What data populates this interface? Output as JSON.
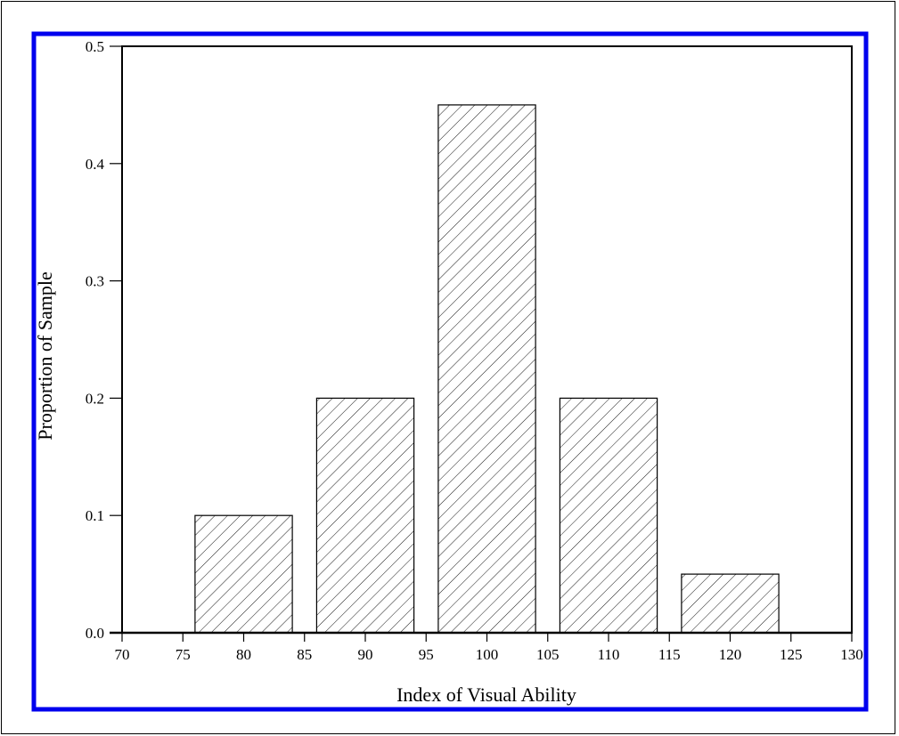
{
  "chart_data": {
    "type": "bar",
    "xlabel": "Index of Visual Ability",
    "ylabel": "Proportion of Sample",
    "xlim": [
      70,
      130
    ],
    "ylim": [
      0.0,
      0.5
    ],
    "x_ticks": [
      "70",
      "75",
      "80",
      "85",
      "90",
      "95",
      "100",
      "105",
      "110",
      "115",
      "120",
      "125",
      "130"
    ],
    "y_ticks": [
      "0.0",
      "0.1",
      "0.2",
      "0.3",
      "0.4",
      "0.5"
    ],
    "bars": [
      {
        "x_start": 76,
        "x_end": 84,
        "value": 0.1
      },
      {
        "x_start": 86,
        "x_end": 94,
        "value": 0.2
      },
      {
        "x_start": 96,
        "x_end": 104,
        "value": 0.45
      },
      {
        "x_start": 106,
        "x_end": 114,
        "value": 0.2
      },
      {
        "x_start": 116,
        "x_end": 124,
        "value": 0.05
      }
    ],
    "fill_pattern": "diagonal-hatch",
    "grid": false,
    "colors": {
      "frame_border": "#0000ee",
      "bar_stroke": "#000000",
      "hatch": "#000000",
      "background": "#ffffff"
    }
  }
}
